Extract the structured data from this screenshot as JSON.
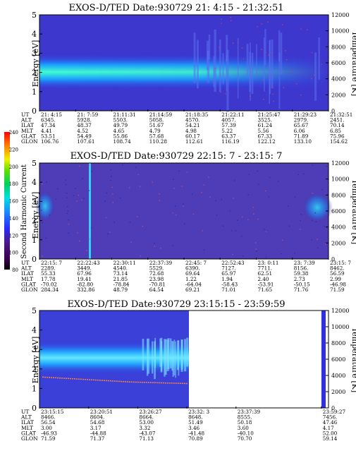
{
  "colorbar": {
    "label": "Second Harmonic Current",
    "ticks": [
      "240",
      "220",
      "200",
      "180",
      "160",
      "140",
      "120",
      "100",
      "80"
    ]
  },
  "panels": [
    {
      "title": "EXOS-D/TED   Date:930729  21: 4:15 - 21:32:51",
      "ylabel": "Energy [eV]",
      "y2label": "Temperature [K]",
      "yticks": [
        "0",
        "1",
        "2",
        "3",
        "4",
        "5"
      ],
      "y2ticks": [
        "0",
        "2000",
        "4000",
        "6000",
        "8000",
        "10000",
        "12000"
      ],
      "orbit_rows": [
        {
          "label": "UT",
          "values": [
            "21: 4:15",
            "21: 7:59",
            "21:11:31",
            "21:14:59",
            "21:18:35",
            "21:22:11",
            "21:25:47",
            "21:29:23",
            "21:32:51"
          ]
        },
        {
          "label": "ALT",
          "values": [
            "6345.",
            "5928.",
            "5503.",
            "5058.",
            "4570.",
            "4057.",
            "3525.",
            "2979.",
            "2451."
          ]
        },
        {
          "label": "ILAT",
          "values": [
            "47.34",
            "48.37",
            "49.79",
            "51.67",
            "54.21",
            "57.39",
            "61.24",
            "65.67",
            "70.14"
          ]
        },
        {
          "label": "MLT",
          "values": [
            "4.41",
            "4.52",
            "4.65",
            "4.79",
            "4.98",
            "5.22",
            "5.56",
            "6.06",
            "6.85"
          ]
        },
        {
          "label": "GLAT",
          "values": [
            "53.51",
            "54.49",
            "55.86",
            "57.68",
            "60.17",
            "63.37",
            "67.33",
            "71.89",
            "75.96"
          ]
        },
        {
          "label": "GLON",
          "values": [
            "106.76",
            "107.61",
            "108.74",
            "110.28",
            "112.61",
            "116.19",
            "122.12",
            "133.10",
            "154.62"
          ]
        }
      ]
    },
    {
      "title": "EXOS-D/TED   Date:930729  22:15: 7 - 23:15: 7",
      "ylabel": "Energy [eV]",
      "y2label": "Temperature [K]",
      "yticks": [
        "0",
        "1",
        "2",
        "3",
        "4",
        "5"
      ],
      "y2ticks": [
        "0",
        "2000",
        "4000",
        "6000",
        "8000",
        "10000",
        "12000"
      ],
      "orbit_rows": [
        {
          "label": "UT",
          "values": [
            "22:15: 7",
            "22:22:43",
            "22:30:11",
            "22:37:39",
            "22:45: 7",
            "22:52:43",
            "23: 0:11",
            "23: 7:39",
            "23:15: 7"
          ]
        },
        {
          "label": "ALT",
          "values": [
            "2289.",
            "3449.",
            "4540.",
            "5529.",
            "6390.",
            "7127.",
            "7711.",
            "8156.",
            "8462."
          ]
        },
        {
          "label": "ILAT",
          "values": [
            "55.33",
            "67.96",
            "73.14",
            "72.68",
            "69.64",
            "65.97",
            "62.51",
            "59.38",
            "56.59"
          ]
        },
        {
          "label": "MLT",
          "values": [
            "17.78",
            "19.41",
            "21.85",
            "23.98",
            "1.22",
            "1.94",
            "2.40",
            "2.73",
            "2.99"
          ]
        },
        {
          "label": "GLAT",
          "values": [
            "-70.02",
            "-82.80",
            "-78.84",
            "-70.81",
            "-64.04",
            "-58.43",
            "-53.91",
            "-50.15",
            "-46.98"
          ]
        },
        {
          "label": "GLON",
          "values": [
            "284.34",
            "332.86",
            "48.79",
            "64.54",
            "69.21",
            "71.01",
            "71.65",
            "71.76",
            "71.59"
          ]
        }
      ]
    },
    {
      "title": "EXOS-D/TED   Date:930729  23:15:15 - 23:59:59",
      "ylabel": "Energy [eV]",
      "y2label": "Temperature [K]",
      "yticks": [
        "0",
        "1",
        "2",
        "3",
        "4",
        "5"
      ],
      "y2ticks": [
        "0",
        "2000",
        "4000",
        "6000",
        "8000",
        "10000",
        "12000"
      ],
      "orbit_rows": [
        {
          "label": "UT",
          "values": [
            "23:15:15",
            "23:20:51",
            "23:26:27",
            "23:32: 3",
            "23:37:39",
            "23:59:27"
          ]
        },
        {
          "label": "ALT",
          "values": [
            "8466.",
            "8604.",
            "8664.",
            "8648.",
            "8555.",
            "7456."
          ]
        },
        {
          "label": "ILAT",
          "values": [
            "56.54",
            "54.68",
            "53.00",
            "51.49",
            "50.18",
            "47.46"
          ]
        },
        {
          "label": "MLT",
          "values": [
            "3.00",
            "3.17",
            "3.32",
            "3.46",
            "3.60",
            "4.17"
          ]
        },
        {
          "label": "GLAT",
          "values": [
            "-46.93",
            "-44.88",
            "-43.07",
            "-41.48",
            "-40.10",
            "52.00"
          ]
        },
        {
          "label": "GLON",
          "values": [
            "71.59",
            "71.37",
            "71.13",
            "70.89",
            "70.70",
            "59.14"
          ]
        }
      ]
    }
  ],
  "chart_data": [
    {
      "type": "heatmap",
      "title": "EXOS-D/TED   Date:930729  21: 4:15 - 21:32:51",
      "ylabel": "Energy [eV]",
      "y2label": "Temperature [K]",
      "ylim": [
        0,
        5
      ],
      "y2lim": [
        0,
        12000
      ],
      "x_start": "21: 4:15",
      "x_end": "21:32:51",
      "colorscale": "dark blue background; peak band cyan-green near 2.3 eV",
      "band": {
        "center_ev": 2.3,
        "half_width_ev": 0.5,
        "ends_at_fraction_of_time": 0.62
      }
    },
    {
      "type": "heatmap",
      "title": "EXOS-D/TED   Date:930729  22:15: 7 - 23:15: 7",
      "ylabel": "Energy [eV]",
      "y2label": "Temperature [K]",
      "ylim": [
        0,
        5
      ],
      "y2lim": [
        0,
        12000
      ],
      "x_start": "22:15: 7",
      "x_end": "23:15: 7",
      "colorscale": "mostly purple; cyan spike near 22:22; cyan blobs at edges near 2.7 eV"
    },
    {
      "type": "heatmap",
      "title": "EXOS-D/TED   Date:930729  23:15:15 - 23:59:59",
      "ylabel": "Energy [eV]",
      "y2label": "Temperature [K]",
      "ylim": [
        0,
        5
      ],
      "y2lim": [
        0,
        12000
      ],
      "x_start": "23:15:15",
      "x_end": "23:59:59",
      "colorscale": "band cyan near 2.6 eV; data ends at 23:37:39",
      "temperature_trace_K": [
        3800,
        3600,
        3400,
        3200,
        3100,
        3000
      ]
    }
  ]
}
